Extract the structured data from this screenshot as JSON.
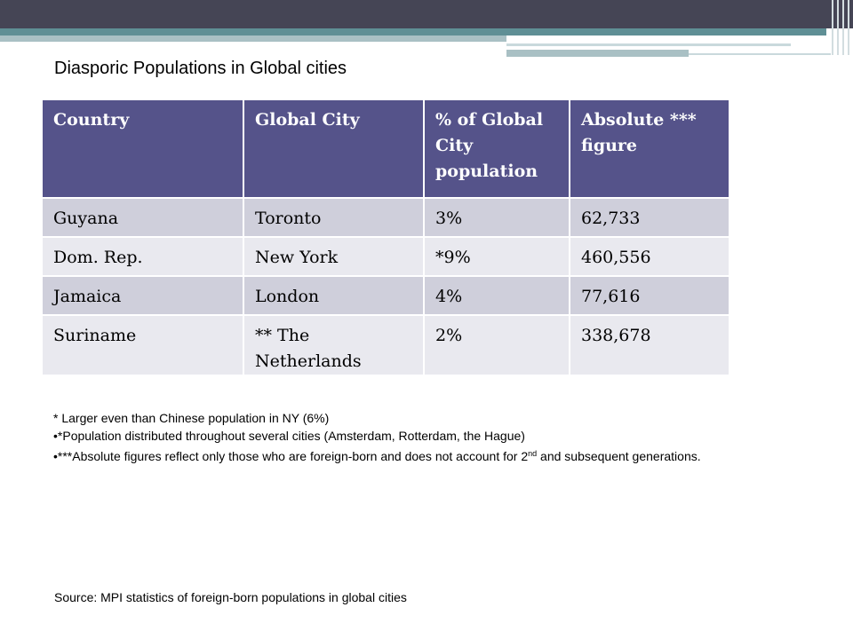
{
  "slide": {
    "title": "Diasporic Populations in Global cities"
  },
  "table": {
    "headers": [
      "Country",
      "Global City",
      "% of Global City population",
      "Absolute *** figure"
    ],
    "rows": [
      [
        "Guyana",
        "Toronto",
        "3%",
        "62,733"
      ],
      [
        "Dom. Rep.",
        "New York",
        "*9%",
        "460,556"
      ],
      [
        "Jamaica",
        "London",
        "4%",
        "77,616"
      ],
      [
        "Suriname",
        "** The Netherlands",
        "2%",
        "338,678"
      ]
    ]
  },
  "notes": {
    "line1": "* Larger even than Chinese population in NY (6%)",
    "line2": "•*Population distributed throughout several cities (Amsterdam, Rotterdam, the Hague)",
    "line3_before": "•***Absolute figures reflect only those who are foreign-born and does not account for 2",
    "line3_sup": "nd",
    "line3_after": " and subsequent generations."
  },
  "source": "Source: MPI statistics of foreign-born populations in global cities",
  "colors": {
    "header_bg": "#55538a",
    "row_odd": "#cfcfdb",
    "row_even": "#e9e9ef",
    "top_bar": "#454555",
    "accent_teal": "#5f8f95"
  }
}
